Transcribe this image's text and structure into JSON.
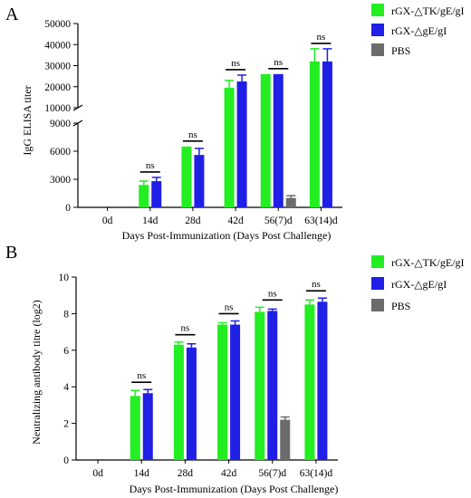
{
  "colors": {
    "green": "#22ee22",
    "blue": "#1f1fe6",
    "gray": "#6b6b6b",
    "axis": "#000000"
  },
  "chart_data": [
    {
      "type": "bar",
      "panel_label": "A",
      "ylabel": "IgG ELISA titer",
      "xlabel": "Days Post-Immunization (Days Post Challenge)",
      "categories": [
        "0d",
        "14d",
        "28d",
        "42d",
        "56(7)d",
        "63(14)d"
      ],
      "axis_break": {
        "lower_range": [
          0,
          9000
        ],
        "upper_range": [
          10000,
          50000
        ]
      },
      "yticks_lower": [
        "0",
        "3000",
        "6000",
        "9000"
      ],
      "yticks_upper": [
        "10000",
        "20000",
        "30000",
        "40000",
        "50000"
      ],
      "series": [
        {
          "name": "rGX-△TK/gE/gI",
          "color": "#22ee22",
          "values": [
            0,
            2400,
            6500,
            19500,
            26000,
            32000
          ],
          "errors": [
            0,
            400,
            0,
            3500,
            0,
            6000
          ]
        },
        {
          "name": "rGX-△gE/gI",
          "color": "#1f1fe6",
          "values": [
            0,
            2800,
            5600,
            22500,
            26000,
            32000
          ],
          "errors": [
            0,
            400,
            700,
            3000,
            0,
            6000
          ]
        },
        {
          "name": "PBS",
          "color": "#6b6b6b",
          "values": [
            0,
            0,
            0,
            0,
            1000,
            0
          ],
          "errors": [
            0,
            0,
            0,
            0,
            250,
            0
          ]
        }
      ],
      "annotations": [
        {
          "category": "14d",
          "text": "ns"
        },
        {
          "category": "28d",
          "text": "ns"
        },
        {
          "category": "42d",
          "text": "ns"
        },
        {
          "category": "56(7)d",
          "text": "ns"
        },
        {
          "category": "63(14)d",
          "text": "ns"
        }
      ],
      "legend_position": "right"
    },
    {
      "type": "bar",
      "panel_label": "B",
      "ylabel": "Neutralizing antibody titre (log2)",
      "xlabel": "Days Post-Immunization (Days Post Challenge)",
      "categories": [
        "0d",
        "14d",
        "28d",
        "42d",
        "56(7)d",
        "63(14)d"
      ],
      "ylim": [
        0,
        10
      ],
      "yticks": [
        "0",
        "2",
        "4",
        "6",
        "8",
        "10"
      ],
      "series": [
        {
          "name": "rGX-△TK/gE/gI",
          "color": "#22ee22",
          "values": [
            0,
            3.5,
            6.3,
            7.4,
            8.1,
            8.5
          ],
          "errors": [
            0,
            0.3,
            0.15,
            0.1,
            0.25,
            0.25
          ]
        },
        {
          "name": "rGX-△gE/gI",
          "color": "#1f1fe6",
          "values": [
            0,
            3.65,
            6.15,
            7.4,
            8.15,
            8.65
          ],
          "errors": [
            0,
            0.2,
            0.2,
            0.2,
            0.1,
            0.2
          ]
        },
        {
          "name": "PBS",
          "color": "#6b6b6b",
          "values": [
            0,
            0,
            0,
            0,
            2.2,
            0
          ],
          "errors": [
            0,
            0,
            0,
            0,
            0.15,
            0
          ]
        }
      ],
      "annotations": [
        {
          "category": "14d",
          "text": "ns"
        },
        {
          "category": "28d",
          "text": "ns"
        },
        {
          "category": "42d",
          "text": "ns"
        },
        {
          "category": "56(7)d",
          "text": "ns"
        },
        {
          "category": "63(14)d",
          "text": "ns"
        }
      ],
      "legend_position": "right"
    }
  ]
}
